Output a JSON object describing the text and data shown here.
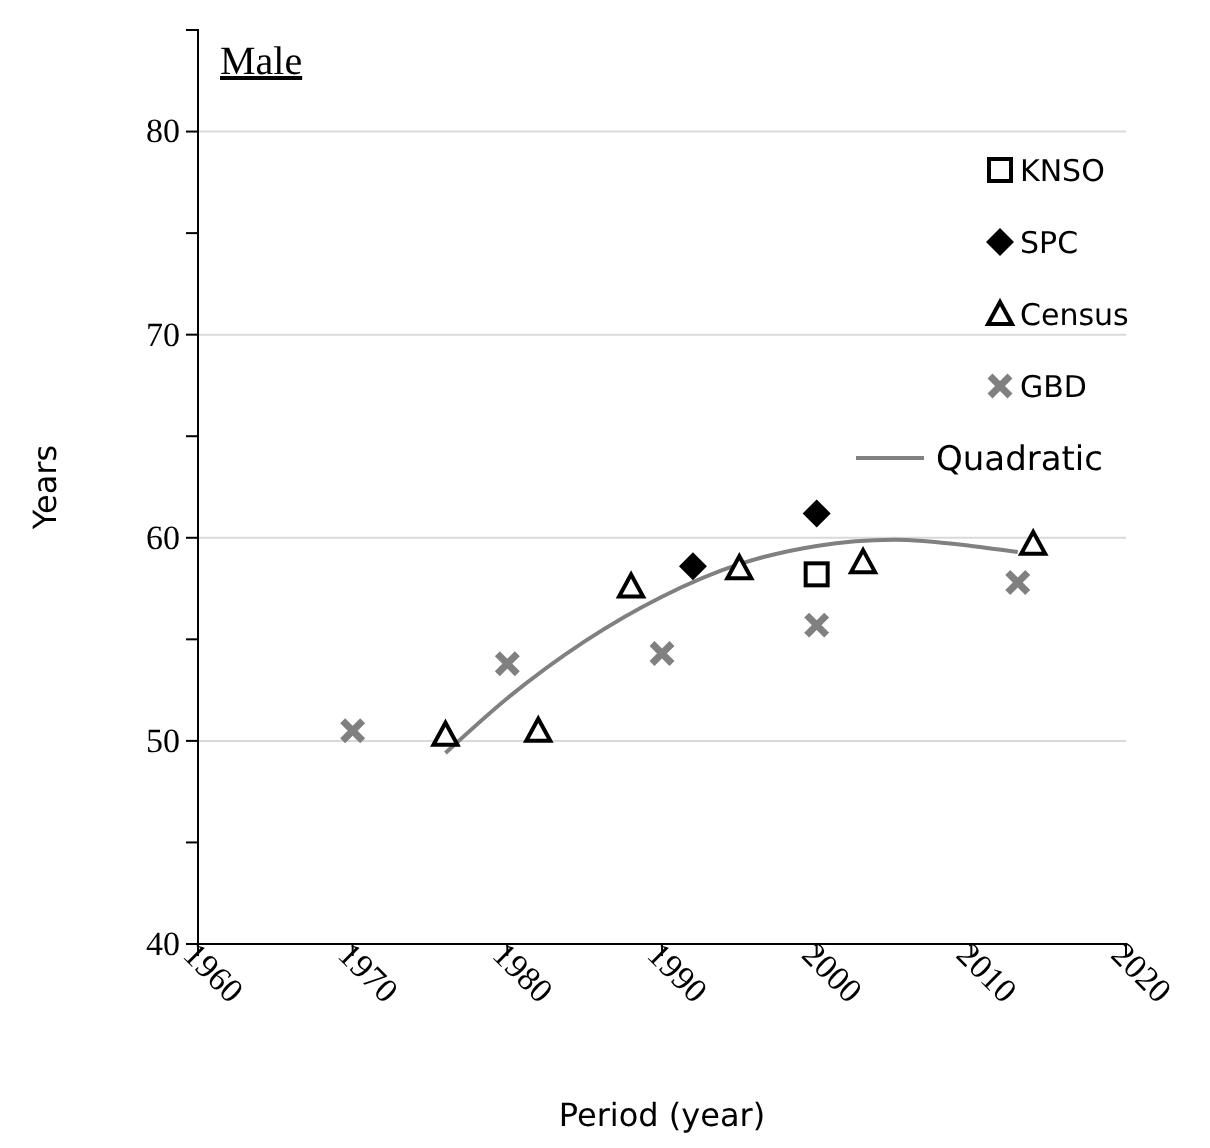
{
  "chart_data": {
    "type": "scatter",
    "title": "Male",
    "xlabel": "Period (year)",
    "ylabel": "Years",
    "xlim": [
      1960,
      2020
    ],
    "xticks": [
      1960,
      1970,
      1980,
      1990,
      2000,
      2010,
      2020
    ],
    "ylim": [
      40,
      85
    ],
    "yticks": [
      40,
      {
        "value": 45,
        "label": null
      },
      50,
      {
        "value": 55,
        "label": null
      },
      60,
      {
        "value": 65,
        "label": null
      },
      70,
      {
        "value": 75,
        "label": null
      },
      80
    ],
    "grid": "y",
    "legend": "top right",
    "series": [
      {
        "name": "KNSO",
        "color": "#000000",
        "marker": "square",
        "x": [
          2000
        ],
        "values": [
          58.2
        ]
      },
      {
        "name": "SPC",
        "color": "#000000",
        "marker": "diamond",
        "x": [
          1992,
          2000
        ],
        "values": [
          58.6,
          61.2
        ]
      },
      {
        "name": "Census",
        "color": "#000000",
        "marker": "triangle",
        "x": [
          1976,
          1982,
          1988,
          1995,
          2003,
          2014
        ],
        "values": [
          50.3,
          50.5,
          57.6,
          58.5,
          58.8,
          59.7
        ]
      },
      {
        "name": "GBD",
        "color": "#808080",
        "marker": "cross",
        "x": [
          1970,
          1980,
          1990,
          2000,
          2013
        ],
        "values": [
          50.5,
          53.8,
          54.3,
          55.7,
          57.8
        ]
      },
      {
        "name": "Quadratic",
        "type": "line",
        "color": "#808080",
        "line_style": "solid",
        "marker": "none",
        "x": [
          1976,
          1980,
          1985,
          1990,
          1995,
          2000,
          2005,
          2010,
          2013
        ],
        "values": [
          49.4,
          52.1,
          54.9,
          57.1,
          58.7,
          59.6,
          59.9,
          59.6,
          59.3
        ]
      }
    ]
  }
}
